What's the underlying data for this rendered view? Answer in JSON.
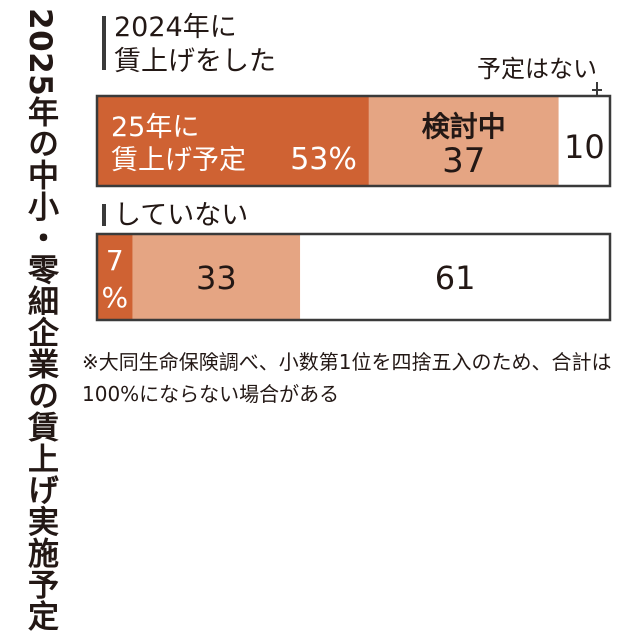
{
  "title": "2025年の中小・零細企業の賃上げ実施予定",
  "chart_data": {
    "type": "bar",
    "orientation": "horizontal",
    "stacked": true,
    "unit": "%",
    "xlim": [
      0,
      100
    ],
    "groups": [
      {
        "label": "2024年に 賃上げをした",
        "segments": [
          {
            "label": "25年に 賃上げ予定",
            "value": 53,
            "value_text": "53%"
          },
          {
            "label": "検討中",
            "value": 37,
            "value_text": "37"
          },
          {
            "label": "予定はない",
            "value": 10,
            "value_text": "10"
          }
        ]
      },
      {
        "label": "していない",
        "segments": [
          {
            "label": "",
            "value": 7,
            "value_text": "7%"
          },
          {
            "label": "",
            "value": 33,
            "value_text": "33"
          },
          {
            "label": "",
            "value": 61,
            "value_text": "61"
          }
        ]
      }
    ],
    "colors": {
      "planned": "#cf6233",
      "considering": "#e5a583",
      "none": "#ffffff",
      "border": "#3a3a3a"
    }
  },
  "note": "※大同生命保険調べ、小数第1位を四捨五入のため、合計は100%にならない場合がある"
}
